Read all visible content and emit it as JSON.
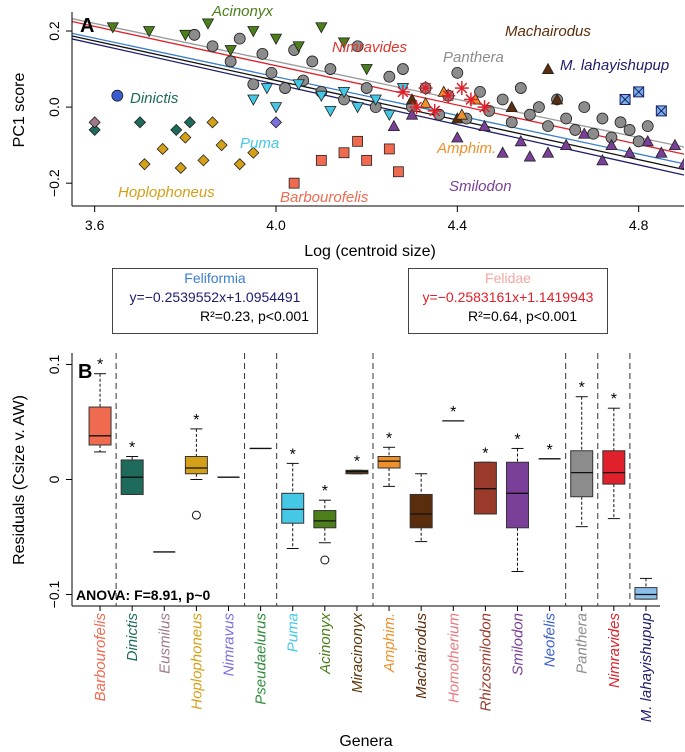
{
  "panelA": {
    "label": "A",
    "xlabel": "Log (centroid size)",
    "ylabel": "PC1 score",
    "xticks": [
      "3.6",
      "4.0",
      "4.4",
      "4.8"
    ],
    "yticks": [
      "0.2",
      "0.0",
      "−0.2"
    ],
    "genus_labels": [
      {
        "text": "Acinonyx",
        "color": "#4a7f1a"
      },
      {
        "text": "Nimravides",
        "color": "#e0352b"
      },
      {
        "text": "Panthera",
        "color": "#8c8c8c"
      },
      {
        "text": "Machairodus",
        "color": "#5a2d0c"
      },
      {
        "text": "M. lahayishupup",
        "color": "#1d1d6b"
      },
      {
        "text": "Dinictis",
        "color": "#1e6b5c"
      },
      {
        "text": "Puma",
        "color": "#45c8e6"
      },
      {
        "text": "Amphim.",
        "color": "#f0902a"
      },
      {
        "text": "Hoplophoneus",
        "color": "#d4a017"
      },
      {
        "text": "Barbourofelis",
        "color": "#f06a50"
      },
      {
        "text": "Smilodon",
        "color": "#7a3f98"
      }
    ]
  },
  "feliformia": {
    "name": "Feliformia",
    "equation": "y=−0.2539552x+1.0954491",
    "stats": "R²=0.23, p<0.001",
    "name_color": "#3a7ecc",
    "eq_color": "#1d1d6b"
  },
  "felidae": {
    "name": "Felidae",
    "equation": "y=−0.2583161x+1.1419943",
    "stats": "R²=0.64, p<0.001",
    "name_color": "#f4a6a0",
    "eq_color": "#e0202a"
  },
  "panelB": {
    "label": "B",
    "ylabel": "Residuals (Csize v. AW)",
    "xlabel": "Genera",
    "yticks": [
      "0.1",
      "0",
      "−0.1"
    ],
    "anova": "ANOVA: F=8.91, p~0"
  },
  "chart_data": [
    {
      "type": "scatter",
      "title": "A",
      "xlabel": "Log (centroid size)",
      "ylabel": "PC1 score",
      "xlim": [
        3.55,
        4.9
      ],
      "ylim": [
        -0.26,
        0.25
      ],
      "regression_lines": [
        {
          "name": "Feliformia",
          "slope": -0.2539552,
          "intercept": 1.0954491,
          "color": "#3a7ecc"
        },
        {
          "name": "Felidae",
          "slope": -0.2583161,
          "intercept": 1.1419943,
          "color": "#e0202a"
        },
        {
          "name": "fit-black",
          "slope": -0.26,
          "intercept": 1.11,
          "color": "#111111"
        },
        {
          "name": "fit-grey",
          "slope": -0.25,
          "intercept": 1.12,
          "color": "#9a9a9a"
        },
        {
          "name": "fit-navy",
          "slope": -0.265,
          "intercept": 1.12,
          "color": "#1d1d6b"
        }
      ],
      "series": [
        {
          "name": "Panthera",
          "marker": "circle",
          "color": "#8c8c8c",
          "points": [
            [
              3.82,
              0.19
            ],
            [
              3.86,
              0.16
            ],
            [
              3.9,
              0.12
            ],
            [
              3.92,
              0.18
            ],
            [
              3.95,
              0.06
            ],
            [
              3.97,
              0.14
            ],
            [
              3.99,
              0.09
            ],
            [
              4.02,
              0.05
            ],
            [
              4.04,
              0.15
            ],
            [
              4.06,
              0.07
            ],
            [
              4.08,
              0.12
            ],
            [
              4.1,
              0.04
            ],
            [
              4.12,
              0.1
            ],
            [
              4.15,
              0.02
            ],
            [
              4.18,
              0.16
            ],
            [
              4.2,
              0.05
            ],
            [
              4.22,
              0.0
            ],
            [
              4.25,
              0.08
            ],
            [
              4.28,
              0.1
            ],
            [
              4.3,
              0.0
            ],
            [
              4.33,
              0.05
            ],
            [
              4.36,
              -0.02
            ],
            [
              4.38,
              0.03
            ],
            [
              4.4,
              0.09
            ],
            [
              4.42,
              -0.03
            ],
            [
              4.45,
              0.04
            ],
            [
              4.47,
              -0.01
            ],
            [
              4.5,
              0.02
            ],
            [
              4.52,
              -0.04
            ],
            [
              4.54,
              0.05
            ],
            [
              4.56,
              -0.02
            ],
            [
              4.58,
              0.0
            ],
            [
              4.6,
              -0.05
            ],
            [
              4.62,
              0.02
            ],
            [
              4.64,
              -0.03
            ],
            [
              4.66,
              -0.06
            ],
            [
              4.68,
              0.0
            ],
            [
              4.7,
              -0.07
            ],
            [
              4.72,
              -0.03
            ],
            [
              4.74,
              -0.08
            ],
            [
              4.76,
              -0.04
            ],
            [
              4.78,
              -0.06
            ],
            [
              4.8,
              -0.09
            ],
            [
              4.82,
              -0.05
            ]
          ]
        },
        {
          "name": "Acinonyx",
          "marker": "triangle-down",
          "color": "#4a7f1a",
          "points": [
            [
              3.64,
              0.21
            ],
            [
              3.72,
              0.2
            ],
            [
              3.8,
              0.19
            ],
            [
              3.85,
              0.22
            ],
            [
              3.9,
              0.15
            ],
            [
              3.95,
              0.2
            ],
            [
              4.0,
              0.18
            ],
            [
              4.05,
              0.16
            ],
            [
              4.1,
              0.21
            ],
            [
              4.15,
              0.17
            ],
            [
              4.2,
              0.1
            ]
          ]
        },
        {
          "name": "Puma",
          "marker": "triangle-down",
          "color": "#45c8e6",
          "points": [
            [
              3.95,
              0.02
            ],
            [
              3.98,
              0.05
            ],
            [
              4.0,
              0.0
            ],
            [
              4.05,
              0.06
            ],
            [
              4.1,
              0.03
            ],
            [
              4.12,
              -0.01
            ],
            [
              4.15,
              0.04
            ],
            [
              4.18,
              0.0
            ],
            [
              4.22,
              0.02
            ],
            [
              4.25,
              -0.02
            ],
            [
              4.28,
              0.05
            ]
          ]
        },
        {
          "name": "Machairodus",
          "marker": "triangle-up",
          "color": "#5a2d0c",
          "points": [
            [
              4.3,
              0.02
            ],
            [
              4.4,
              -0.03
            ],
            [
              4.52,
              0.0
            ],
            [
              4.6,
              0.1
            ],
            [
              4.62,
              0.02
            ]
          ]
        },
        {
          "name": "Amphimachairodus",
          "marker": "triangle-up",
          "color": "#f0902a",
          "points": [
            [
              4.33,
              0.01
            ],
            [
              4.37,
              0.04
            ],
            [
              4.41,
              -0.02
            ],
            [
              4.44,
              0.02
            ]
          ]
        },
        {
          "name": "Smilodon",
          "marker": "triangle-up",
          "color": "#7a3f98",
          "points": [
            [
              4.26,
              -0.05
            ],
            [
              4.3,
              -0.02
            ],
            [
              4.4,
              -0.08
            ],
            [
              4.46,
              -0.05
            ],
            [
              4.5,
              -0.12
            ],
            [
              4.54,
              -0.09
            ],
            [
              4.56,
              -0.13
            ],
            [
              4.6,
              -0.12
            ],
            [
              4.64,
              -0.1
            ],
            [
              4.68,
              -0.07
            ],
            [
              4.72,
              -0.14
            ],
            [
              4.74,
              -0.1
            ],
            [
              4.78,
              -0.12
            ],
            [
              4.82,
              -0.09
            ],
            [
              4.85,
              -0.12
            ],
            [
              4.88,
              -0.1
            ],
            [
              4.9,
              -0.15
            ]
          ]
        },
        {
          "name": "M. lahayishupup",
          "marker": "square-x",
          "color": "#7ab4e6",
          "points": [
            [
              4.77,
              0.02
            ],
            [
              4.8,
              0.04
            ],
            [
              4.85,
              -0.01
            ]
          ]
        },
        {
          "name": "Nimravides",
          "marker": "asterisk",
          "color": "#e0202a",
          "points": [
            [
              4.28,
              0.04
            ],
            [
              4.31,
              0.0
            ],
            [
              4.33,
              0.05
            ],
            [
              4.35,
              -0.01
            ],
            [
              4.38,
              0.03
            ],
            [
              4.41,
              0.05
            ],
            [
              4.43,
              0.02
            ],
            [
              4.46,
              0.0
            ]
          ]
        },
        {
          "name": "Barbourofelis",
          "marker": "square",
          "color": "#f06a50",
          "points": [
            [
              4.04,
              -0.2
            ],
            [
              4.1,
              -0.14
            ],
            [
              4.15,
              -0.12
            ],
            [
              4.18,
              -0.09
            ],
            [
              4.2,
              -0.14
            ],
            [
              4.25,
              -0.11
            ],
            [
              4.27,
              -0.17
            ]
          ]
        },
        {
          "name": "Hoplophoneus",
          "marker": "diamond",
          "color": "#d4a017",
          "points": [
            [
              3.71,
              -0.15
            ],
            [
              3.75,
              -0.11
            ],
            [
              3.79,
              -0.16
            ],
            [
              3.8,
              -0.08
            ],
            [
              3.84,
              -0.14
            ],
            [
              3.88,
              -0.1
            ],
            [
              3.92,
              -0.15
            ],
            [
              3.95,
              -0.12
            ],
            [
              3.86,
              -0.04
            ]
          ]
        },
        {
          "name": "Dinictis",
          "marker": "diamond",
          "color": "#1e6b5c",
          "points": [
            [
              3.6,
              -0.06
            ],
            [
              3.7,
              -0.04
            ],
            [
              3.78,
              -0.06
            ],
            [
              3.81,
              -0.04
            ]
          ]
        },
        {
          "name": "Eusmilus",
          "marker": "diamond",
          "color": "#a0788c",
          "points": [
            [
              3.6,
              -0.04
            ]
          ]
        },
        {
          "name": "Nimravus",
          "marker": "diamond",
          "color": "#7a70e0",
          "points": [
            [
              4.0,
              -0.04
            ]
          ]
        },
        {
          "name": "Neofelis",
          "marker": "circle",
          "color": "#3a5cd0",
          "points": [
            [
              3.65,
              0.03
            ]
          ]
        }
      ]
    },
    {
      "type": "box",
      "title": "B",
      "xlabel": "Genera",
      "ylabel": "Residuals (Csize v. AW)",
      "ylim": [
        -0.11,
        0.11
      ],
      "significance_mark": "*",
      "categories": [
        "Barbourofelis",
        "Dinictis",
        "Eusmilus",
        "Hoplophoneus",
        "Nimravus",
        "Pseudaelurus",
        "Puma",
        "Acinonyx",
        "Miracinonyx",
        "Amphim.",
        "Machairodus",
        "Homotherium",
        "Rhizosmilodon",
        "Smilodon",
        "Neofelis",
        "Panthera",
        "Nimravides",
        "M. lahayishupup"
      ],
      "boxes": [
        {
          "name": "Barbourofelis",
          "color": "#f06a50",
          "min": 0.024,
          "q1": 0.03,
          "median": 0.038,
          "q3": 0.063,
          "max": 0.092,
          "outliers": [],
          "star": true
        },
        {
          "name": "Dinictis",
          "color": "#1e6b5c",
          "min": -0.013,
          "q1": -0.013,
          "median": 0.002,
          "q3": 0.017,
          "max": 0.02,
          "outliers": [],
          "star": true
        },
        {
          "name": "Eusmilus",
          "color": "#a0788c",
          "min": -0.063,
          "q1": -0.063,
          "median": -0.063,
          "q3": -0.063,
          "max": -0.063,
          "outliers": [],
          "star": false
        },
        {
          "name": "Hoplophoneus",
          "color": "#d4a017",
          "min": 0.0,
          "q1": 0.005,
          "median": 0.01,
          "q3": 0.02,
          "max": 0.044,
          "outliers": [
            -0.031
          ],
          "star": true
        },
        {
          "name": "Nimravus",
          "color": "#7a70e0",
          "min": 0.002,
          "q1": 0.002,
          "median": 0.002,
          "q3": 0.002,
          "max": 0.002,
          "outliers": [],
          "star": false
        },
        {
          "name": "Pseudaelurus",
          "color": "#2e8b3a",
          "min": 0.027,
          "q1": 0.027,
          "median": 0.027,
          "q3": 0.027,
          "max": 0.027,
          "outliers": [],
          "star": false
        },
        {
          "name": "Puma",
          "color": "#45c8e6",
          "min": -0.06,
          "q1": -0.038,
          "median": -0.026,
          "q3": -0.012,
          "max": 0.014,
          "outliers": [],
          "star": true
        },
        {
          "name": "Acinonyx",
          "color": "#4a7f1a",
          "min": -0.055,
          "q1": -0.042,
          "median": -0.036,
          "q3": -0.027,
          "max": -0.018,
          "outliers": [
            -0.07
          ],
          "star": true
        },
        {
          "name": "Miracinonyx",
          "color": "#5a3a0c",
          "min": 0.005,
          "q1": 0.005,
          "median": 0.007,
          "q3": 0.008,
          "max": 0.008,
          "outliers": [],
          "star": true
        },
        {
          "name": "Amphim.",
          "color": "#f0902a",
          "min": -0.006,
          "q1": 0.01,
          "median": 0.016,
          "q3": 0.02,
          "max": 0.028,
          "outliers": [],
          "star": true
        },
        {
          "name": "Machairodus",
          "color": "#5a2d0c",
          "min": -0.054,
          "q1": -0.042,
          "median": -0.03,
          "q3": -0.013,
          "max": 0.005,
          "outliers": [],
          "star": false
        },
        {
          "name": "Homotherium",
          "color": "#e87a80",
          "min": 0.051,
          "q1": 0.051,
          "median": 0.051,
          "q3": 0.051,
          "max": 0.051,
          "outliers": [],
          "star": true
        },
        {
          "name": "Rhizosmilodon",
          "color": "#9a3a2a",
          "min": -0.03,
          "q1": -0.03,
          "median": -0.008,
          "q3": 0.015,
          "max": 0.015,
          "outliers": [],
          "star": true
        },
        {
          "name": "Smilodon",
          "color": "#7a3f98",
          "min": -0.08,
          "q1": -0.042,
          "median": -0.012,
          "q3": 0.015,
          "max": 0.027,
          "outliers": [],
          "star": true
        },
        {
          "name": "Neofelis",
          "color": "#3a5cd0",
          "min": 0.018,
          "q1": 0.018,
          "median": 0.018,
          "q3": 0.018,
          "max": 0.018,
          "outliers": [],
          "star": true
        },
        {
          "name": "Panthera",
          "color": "#8c8c8c",
          "min": -0.041,
          "q1": -0.015,
          "median": 0.006,
          "q3": 0.025,
          "max": 0.072,
          "outliers": [],
          "star": true
        },
        {
          "name": "Nimravides",
          "color": "#e0202a",
          "min": -0.034,
          "q1": -0.004,
          "median": 0.006,
          "q3": 0.025,
          "max": 0.062,
          "outliers": [],
          "star": true
        },
        {
          "name": "M. lahayishupup",
          "color": "#8cc0ea",
          "min": -0.104,
          "q1": -0.104,
          "median": -0.1,
          "q3": -0.094,
          "max": -0.086,
          "outliers": [],
          "star": false
        }
      ],
      "group_separators_after": [
        "Barbourofelis",
        "Nimravus",
        "Pseudaelurus",
        "Miracinonyx",
        "Neofelis",
        "Panthera",
        "Nimravides"
      ],
      "label_colors": [
        "#f06a50",
        "#1e6b5c",
        "#a0788c",
        "#d4a017",
        "#7a70e0",
        "#2e8b3a",
        "#45c8e6",
        "#4a7f1a",
        "#5a3a0c",
        "#f0902a",
        "#5a2d0c",
        "#e87a80",
        "#9a3a2a",
        "#7a3f98",
        "#3a5cd0",
        "#8c8c8c",
        "#e0202a",
        "#1d1d6b"
      ]
    }
  ]
}
